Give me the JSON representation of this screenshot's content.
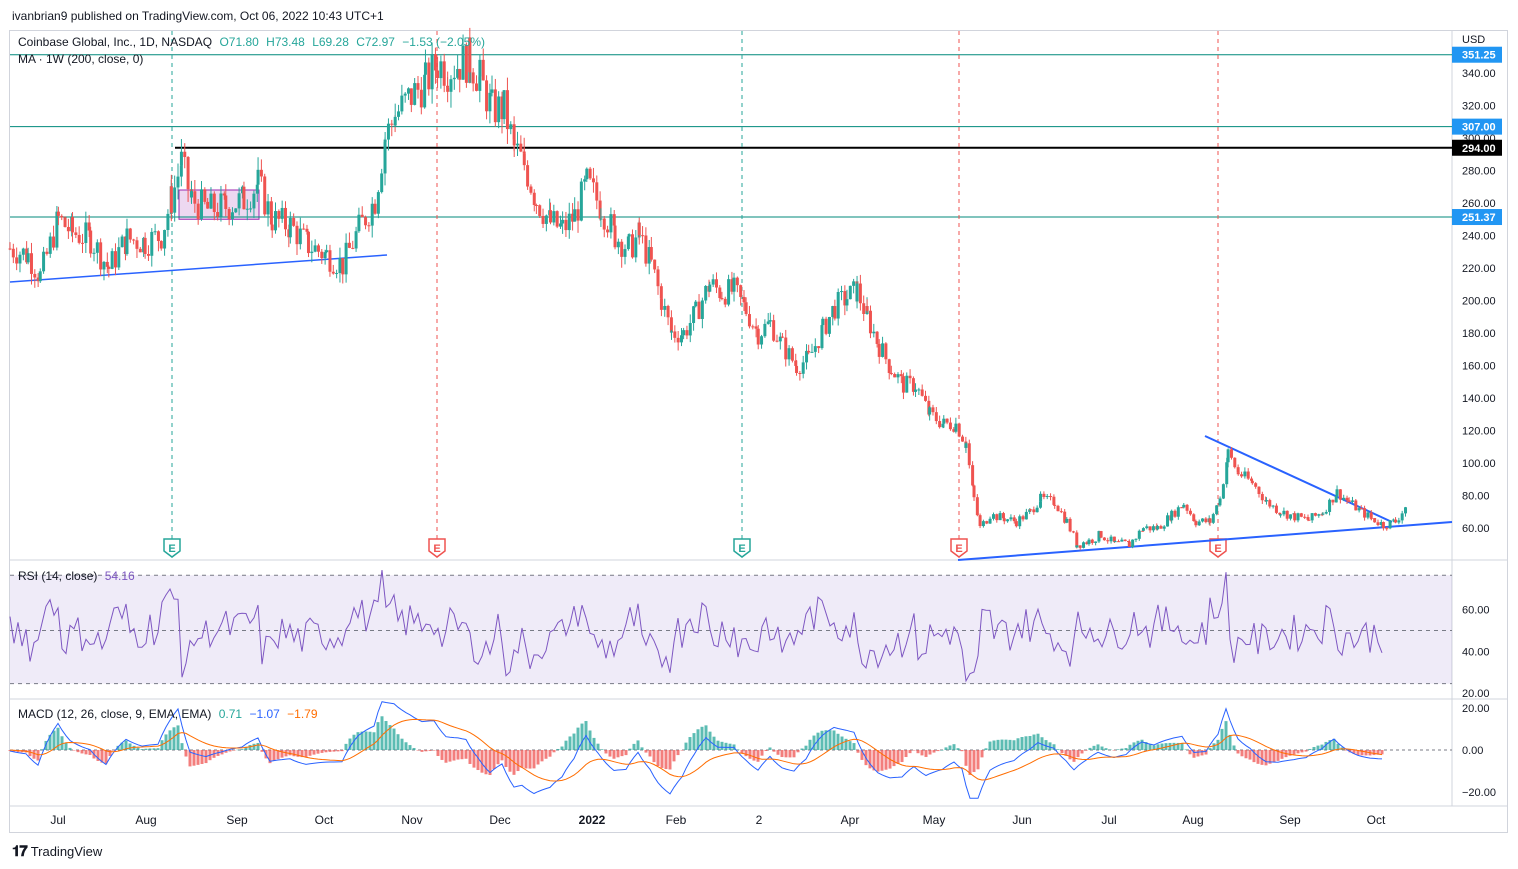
{
  "header": {
    "published": "ivanbrian9 published on TradingView.com, Oct 06, 2022 10:43 UTC+1"
  },
  "legend": {
    "symbol": "Coinbase Global, Inc., 1D, NASDAQ",
    "open": "O71.80",
    "high": "H73.48",
    "low": "L69.28",
    "close": "C72.97",
    "change": "−1.53 (−2.05%)",
    "ma": "MA · 1W (200, close, 0)",
    "rsi_label": "RSI (14, close)",
    "rsi_value": "54.16",
    "macd_label": "MACD (12, 26, close, 9, EMA, EMA)",
    "macd_v1": "0.71",
    "macd_v2": "−1.07",
    "macd_v3": "−1.79"
  },
  "footer": {
    "brand": "TradingView"
  },
  "colors": {
    "up": "#26a69a",
    "down": "#ef5350",
    "trend": "#2962ff",
    "hline": "#00897b",
    "rsi": "#7e57c2",
    "macd": "#2962ff",
    "signal": "#ff6d00"
  },
  "chart_data": {
    "type": "candlestick",
    "currency": "USD",
    "price_axis_ticks": [
      60,
      80,
      100,
      120,
      140,
      160,
      180,
      200,
      220,
      240,
      260,
      280,
      300,
      320,
      340
    ],
    "price_labels": [
      "60.00",
      "80.00",
      "100.00",
      "120.00",
      "140.00",
      "160.00",
      "180.00",
      "200.00",
      "220.00",
      "240.00",
      "260.00",
      "280.00",
      "300.00",
      "320.00",
      "340.00"
    ],
    "x_ticks": [
      "Jul",
      "Aug",
      "Sep",
      "Oct",
      "Nov",
      "Dec",
      "2022",
      "Feb",
      "2",
      "Apr",
      "May",
      "Jun",
      "Jul",
      "Aug",
      "Sep",
      "Oct"
    ],
    "horizontal_levels": [
      {
        "value": 351.25,
        "label": "351.25"
      },
      {
        "value": 307.0,
        "label": "307.00"
      },
      {
        "value": 294.0,
        "label": "294.00"
      },
      {
        "value": 251.37,
        "label": "251.37"
      }
    ],
    "earnings_markers": [
      "E",
      "E",
      "E",
      "E",
      "E"
    ],
    "price_path": [
      [
        0,
        232
      ],
      [
        18,
        228
      ],
      [
        30,
        215
      ],
      [
        48,
        250
      ],
      [
        62,
        242
      ],
      [
        80,
        238
      ],
      [
        98,
        220
      ],
      [
        116,
        238
      ],
      [
        134,
        236
      ],
      [
        150,
        240
      ],
      [
        160,
        262
      ],
      [
        170,
        285
      ],
      [
        180,
        262
      ],
      [
        196,
        256
      ],
      [
        214,
        258
      ],
      [
        232,
        262
      ],
      [
        246,
        272
      ],
      [
        260,
        250
      ],
      [
        278,
        246
      ],
      [
        296,
        234
      ],
      [
        314,
        228
      ],
      [
        330,
        222
      ],
      [
        346,
        244
      ],
      [
        362,
        262
      ],
      [
        372,
        300
      ],
      [
        382,
        314
      ],
      [
        398,
        326
      ],
      [
        412,
        334
      ],
      [
        424,
        346
      ],
      [
        434,
        342
      ],
      [
        446,
        346
      ],
      [
        456,
        348
      ],
      [
        466,
        336
      ],
      [
        478,
        318
      ],
      [
        490,
        318
      ],
      [
        500,
        294
      ],
      [
        510,
        284
      ],
      [
        522,
        262
      ],
      [
        536,
        248
      ],
      [
        548,
        244
      ],
      [
        560,
        252
      ],
      [
        572,
        272
      ],
      [
        586,
        258
      ],
      [
        600,
        240
      ],
      [
        614,
        232
      ],
      [
        624,
        240
      ],
      [
        636,
        222
      ],
      [
        646,
        200
      ],
      [
        656,
        180
      ],
      [
        668,
        180
      ],
      [
        680,
        192
      ],
      [
        694,
        210
      ],
      [
        706,
        205
      ],
      [
        718,
        206
      ],
      [
        730,
        194
      ],
      [
        742,
        180
      ],
      [
        754,
        186
      ],
      [
        766,
        172
      ],
      [
        780,
        160
      ],
      [
        792,
        164
      ],
      [
        806,
        182
      ],
      [
        818,
        196
      ],
      [
        830,
        202
      ],
      [
        840,
        206
      ],
      [
        850,
        190
      ],
      [
        862,
        172
      ],
      [
        874,
        158
      ],
      [
        886,
        148
      ],
      [
        898,
        148
      ],
      [
        912,
        130
      ],
      [
        926,
        124
      ],
      [
        938,
        124
      ],
      [
        948,
        112
      ],
      [
        956,
        78
      ],
      [
        962,
        60
      ],
      [
        972,
        68
      ],
      [
        986,
        66
      ],
      [
        998,
        64
      ],
      [
        1012,
        70
      ],
      [
        1022,
        78
      ],
      [
        1036,
        76
      ],
      [
        1048,
        64
      ],
      [
        1058,
        50
      ],
      [
        1070,
        52
      ],
      [
        1082,
        56
      ],
      [
        1096,
        50
      ],
      [
        1110,
        50
      ],
      [
        1124,
        60
      ],
      [
        1138,
        60
      ],
      [
        1152,
        68
      ],
      [
        1164,
        75
      ],
      [
        1176,
        64
      ],
      [
        1190,
        64
      ],
      [
        1200,
        78
      ],
      [
        1208,
        106
      ],
      [
        1218,
        94
      ],
      [
        1232,
        88
      ],
      [
        1246,
        76
      ],
      [
        1260,
        70
      ],
      [
        1274,
        67
      ],
      [
        1288,
        65
      ],
      [
        1302,
        70
      ],
      [
        1316,
        82
      ],
      [
        1328,
        76
      ],
      [
        1340,
        70
      ],
      [
        1350,
        66
      ],
      [
        1362,
        62
      ],
      [
        1374,
        64
      ],
      [
        1384,
        73
      ]
    ],
    "rsi": {
      "levels": [
        70,
        50,
        30
      ],
      "ticks": [
        "20.00",
        "40.00",
        "60.00"
      ],
      "last": 54.16
    },
    "macd": {
      "ticks": [
        "−20.00",
        "0.00",
        "20.00"
      ],
      "macd_last": 0.71,
      "signal_last": -1.07,
      "hist_last": -1.79
    }
  }
}
